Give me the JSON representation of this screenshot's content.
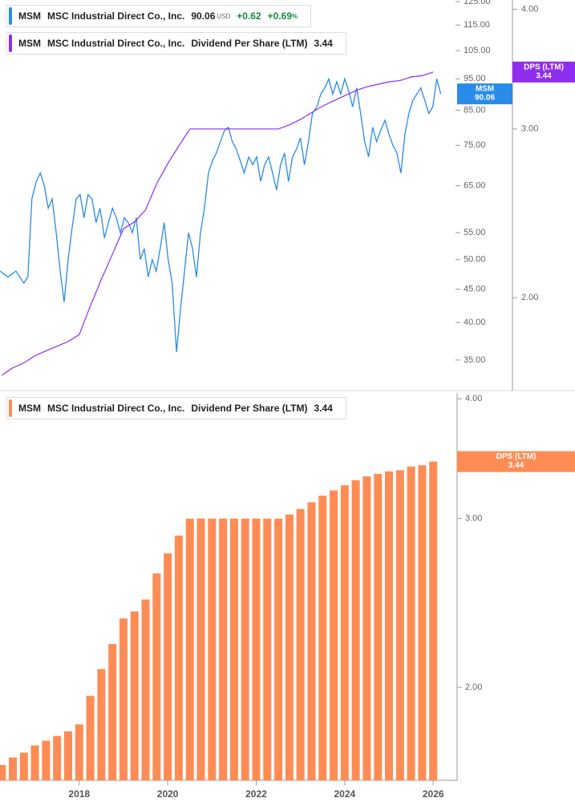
{
  "chart_data": [
    {
      "type": "line",
      "legend": {
        "currency": "USD",
        "change": "+0.62",
        "change_pct": "+0.69",
        "pct_unit": "%"
      },
      "series": [
        {
          "name": "MSM",
          "company": "MSC Industrial Direct Co., Inc.",
          "color": "#2a8be8",
          "x": [
            2016.21,
            2016.39,
            2016.57,
            2016.75,
            2016.84,
            2016.93,
            2017.03,
            2017.12,
            2017.21,
            2017.3,
            2017.39,
            2017.48,
            2017.57,
            2017.66,
            2017.75,
            2017.84,
            2017.93,
            2018.02,
            2018.11,
            2018.2,
            2018.29,
            2018.38,
            2018.47,
            2018.57,
            2018.66,
            2018.75,
            2018.84,
            2018.93,
            2019.02,
            2019.11,
            2019.2,
            2019.29,
            2019.38,
            2019.47,
            2019.56,
            2019.65,
            2019.74,
            2019.83,
            2019.92,
            2020.01,
            2020.1,
            2020.2,
            2020.29,
            2020.38,
            2020.47,
            2020.56,
            2020.65,
            2020.74,
            2020.83,
            2020.92,
            2021.01,
            2021.1,
            2021.19,
            2021.28,
            2021.37,
            2021.46,
            2021.55,
            2021.64,
            2021.73,
            2021.83,
            2021.92,
            2022.01,
            2022.1,
            2022.19,
            2022.28,
            2022.37,
            2022.46,
            2022.55,
            2022.64,
            2022.73,
            2022.82,
            2022.91,
            2023.0,
            2023.09,
            2023.18,
            2023.27,
            2023.37,
            2023.46,
            2023.55,
            2023.64,
            2023.73,
            2023.82,
            2023.91,
            2024.0,
            2024.09,
            2024.18,
            2024.27,
            2024.36,
            2024.45,
            2024.54,
            2024.63,
            2024.72,
            2024.81,
            2024.91,
            2025.0,
            2025.09,
            2025.18,
            2025.27,
            2025.36,
            2025.45,
            2025.54,
            2025.63,
            2025.72,
            2025.81,
            2025.9,
            2025.99,
            2026.08,
            2026.17
          ],
          "values": [
            48,
            47,
            48,
            46,
            47,
            62,
            66,
            68,
            65,
            60,
            62,
            55,
            48,
            43,
            50,
            56,
            62,
            63,
            58,
            63,
            62,
            57,
            60,
            54,
            57,
            60,
            58,
            55,
            58,
            57,
            55,
            58,
            50,
            52,
            47,
            50,
            48,
            52,
            57,
            50,
            46,
            36,
            42,
            48,
            55,
            52,
            47,
            55,
            60,
            68,
            71,
            73,
            76,
            79,
            80,
            76,
            74,
            71,
            68,
            72,
            70,
            72,
            66,
            70,
            72,
            68,
            64,
            70,
            73,
            66,
            72,
            74,
            77,
            70,
            76,
            84,
            86,
            90,
            92,
            95,
            90,
            94,
            90,
            95,
            91,
            86,
            92,
            84,
            76,
            72,
            80,
            76,
            79,
            82,
            78,
            75,
            73,
            68,
            78,
            84,
            88,
            90,
            92,
            88,
            84,
            86,
            95,
            90.06
          ]
        },
        {
          "name": "Dividend Per Share (LTM)",
          "ticker": "MSM",
          "company": "MSC Industrial Direct Co., Inc.",
          "tag_label": "DPS (LTM)",
          "axis": "y2",
          "color": "#8f2df0",
          "x": [
            2016.25,
            2016.5,
            2016.75,
            2017,
            2017.25,
            2017.5,
            2017.75,
            2018,
            2018.25,
            2018.5,
            2018.75,
            2019,
            2019.25,
            2019.5,
            2019.75,
            2020,
            2020.25,
            2020.5,
            2020.75,
            2021,
            2021.25,
            2021.5,
            2021.75,
            2022,
            2022.25,
            2022.5,
            2022.75,
            2023,
            2023.25,
            2023.5,
            2023.75,
            2024,
            2024.25,
            2024.5,
            2024.75,
            2025,
            2025.25,
            2025.5,
            2025.75,
            2026
          ],
          "values": [
            1.66,
            1.69,
            1.71,
            1.74,
            1.76,
            1.78,
            1.8,
            1.83,
            1.96,
            2.09,
            2.22,
            2.36,
            2.4,
            2.47,
            2.63,
            2.76,
            2.88,
            3.0,
            3.0,
            3.0,
            3.0,
            3.0,
            3.0,
            3.0,
            3.0,
            3.0,
            3.03,
            3.07,
            3.12,
            3.17,
            3.21,
            3.25,
            3.29,
            3.32,
            3.34,
            3.36,
            3.37,
            3.4,
            3.41,
            3.44
          ]
        }
      ],
      "xlim": [
        2016.21,
        2026.54
      ],
      "ylim": [
        31.4,
        125.7
      ],
      "log_y": true,
      "yticks": [
        {
          "value": 35,
          "label": "35.00"
        },
        {
          "value": 40,
          "label": "40.00"
        },
        {
          "value": 45,
          "label": "45.00"
        },
        {
          "value": 50,
          "label": "50.00"
        },
        {
          "value": 55,
          "label": "55.00"
        },
        {
          "value": 65,
          "label": "65.00"
        },
        {
          "value": 75,
          "label": "75.00"
        },
        {
          "value": 85,
          "label": "85.00"
        },
        {
          "value": 95,
          "label": "95.00"
        },
        {
          "value": 105,
          "label": "105.00"
        },
        {
          "value": 115,
          "label": "115.00"
        },
        {
          "value": 125,
          "label": "125.00"
        }
      ],
      "y2lim": [
        1.6,
        4.09
      ],
      "log_y2": true,
      "y2ticks": [
        {
          "value": 2,
          "label": "2.00"
        },
        {
          "value": 3,
          "label": "3.00"
        },
        {
          "value": 4,
          "label": "4.00"
        }
      ]
    },
    {
      "type": "bar",
      "series": [
        {
          "name": "Dividend Per Share (LTM)",
          "ticker": "MSM",
          "company": "MSC Industrial Direct Co., Inc.",
          "tag_label": "DPS (LTM)",
          "color": "#ff8c55",
          "x": [
            2016.25,
            2016.5,
            2016.75,
            2017,
            2017.25,
            2017.5,
            2017.75,
            2018,
            2018.25,
            2018.5,
            2018.75,
            2019,
            2019.25,
            2019.5,
            2019.75,
            2020,
            2020.25,
            2020.5,
            2020.75,
            2021,
            2021.25,
            2021.5,
            2021.75,
            2022,
            2022.25,
            2022.5,
            2022.75,
            2023,
            2023.25,
            2023.5,
            2023.75,
            2024,
            2024.25,
            2024.5,
            2024.75,
            2025,
            2025.25,
            2025.5,
            2025.75,
            2026
          ],
          "values": [
            1.66,
            1.69,
            1.71,
            1.74,
            1.76,
            1.78,
            1.8,
            1.83,
            1.96,
            2.09,
            2.22,
            2.36,
            2.4,
            2.47,
            2.63,
            2.76,
            2.88,
            3.0,
            3.0,
            3.0,
            3.0,
            3.0,
            3.0,
            3.0,
            3.0,
            3.0,
            3.03,
            3.07,
            3.12,
            3.17,
            3.21,
            3.25,
            3.29,
            3.32,
            3.34,
            3.36,
            3.37,
            3.4,
            3.41,
            3.44
          ]
        }
      ],
      "xlim": [
        2016.21,
        2026.54
      ],
      "xticks": [
        2018,
        2020,
        2022,
        2024,
        2026
      ],
      "ylim": [
        1.6,
        4.08
      ],
      "log_y": true,
      "yticks": [
        {
          "value": 2,
          "label": "2.00"
        },
        {
          "value": 3,
          "label": "3.00"
        },
        {
          "value": 4,
          "label": "4.00"
        }
      ]
    }
  ]
}
